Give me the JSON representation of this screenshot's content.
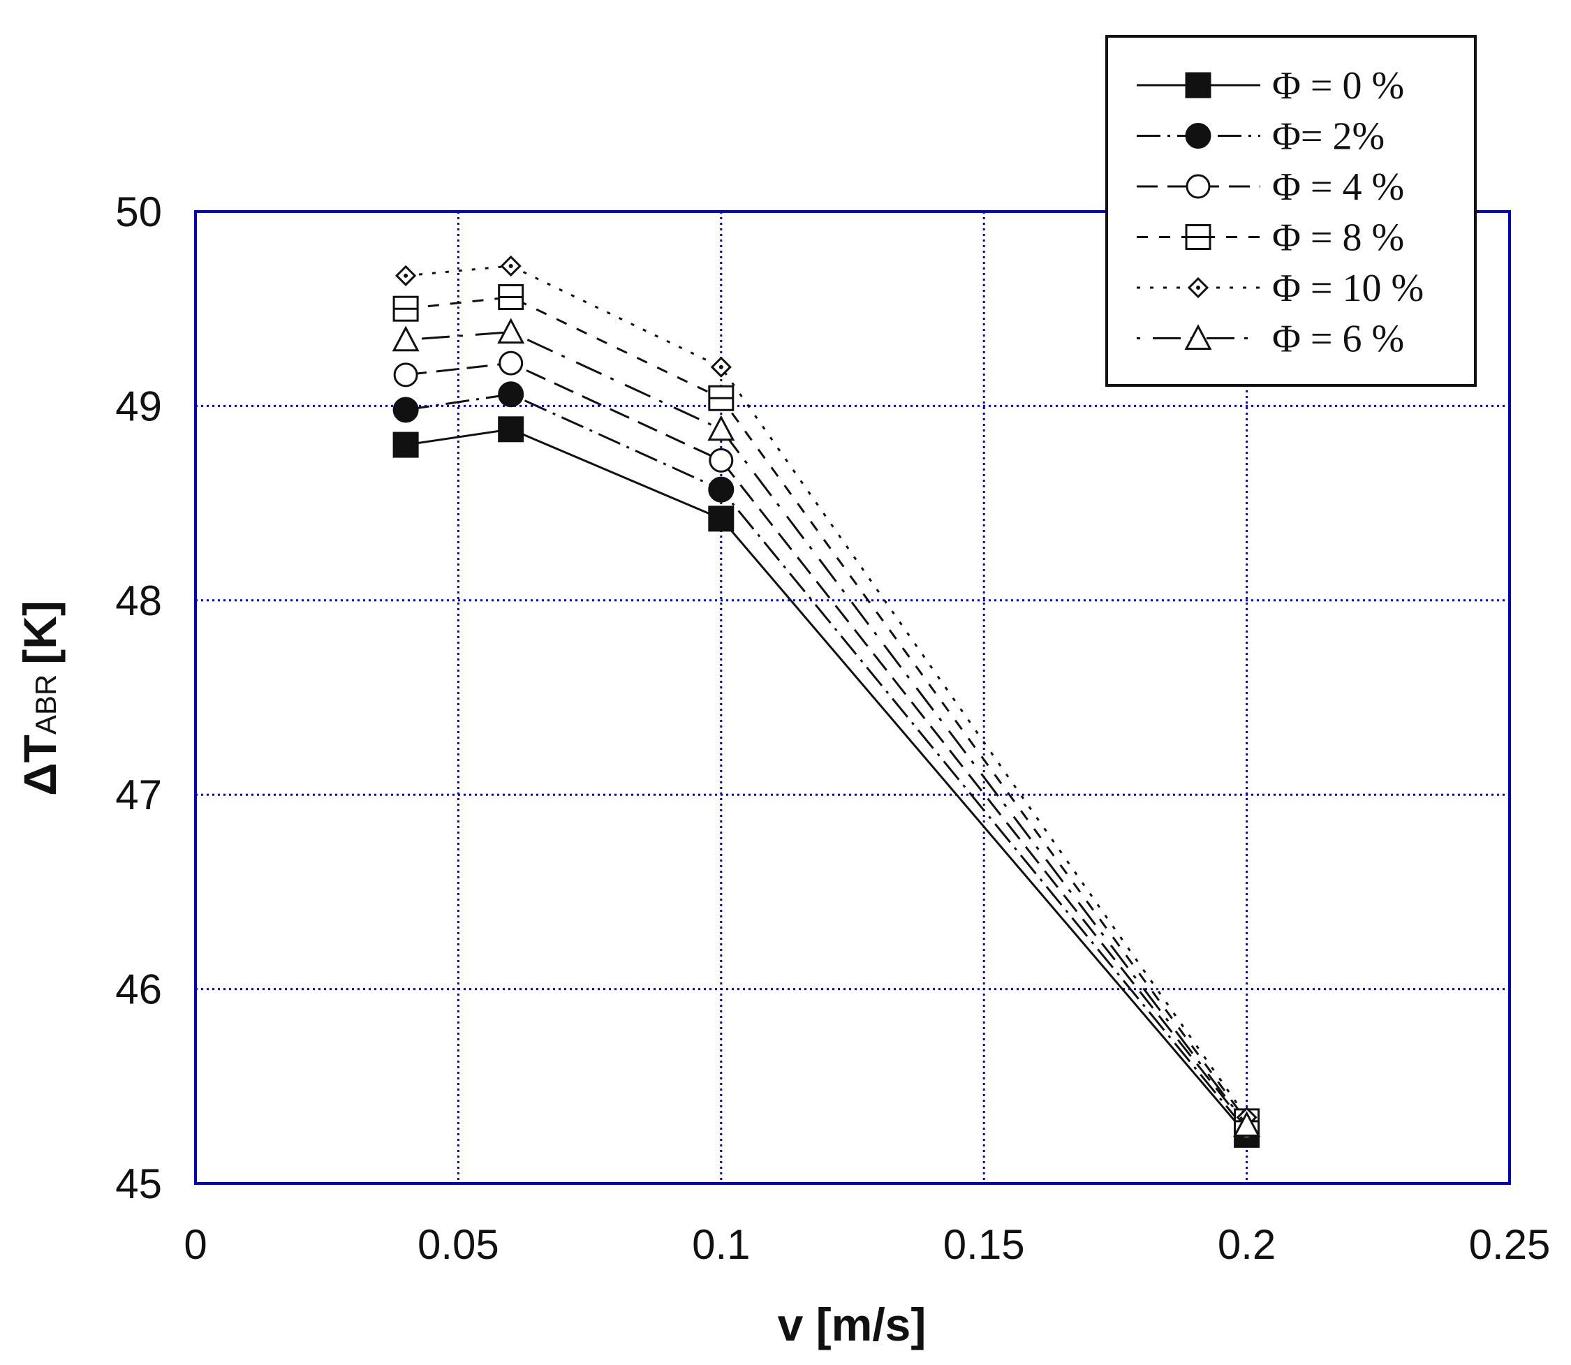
{
  "chart_data": {
    "type": "line",
    "xlabel": "v [m/s]",
    "ylabel": "ΔT",
    "ylabel_sub": "ABR",
    "ylabel_unit": "[K]",
    "xlim": [
      0,
      0.25
    ],
    "ylim": [
      45,
      50
    ],
    "x_ticks": [
      "0",
      "0.05",
      "0.1",
      "0.15",
      "0.2",
      "0.25"
    ],
    "y_ticks": [
      "45",
      "46",
      "47",
      "48",
      "49",
      "50"
    ],
    "x_tick_values": [
      0,
      0.05,
      0.1,
      0.15,
      0.2,
      0.25
    ],
    "y_tick_values": [
      45,
      46,
      47,
      48,
      49,
      50
    ],
    "grid": true,
    "frame_color": "#0000c8",
    "grid_color": "#0000c8",
    "legend_position": "top-right",
    "x": [
      0.04,
      0.06,
      0.1,
      0.2
    ],
    "series": [
      {
        "name": "Φ = 0 %",
        "values": [
          48.8,
          48.88,
          48.42,
          45.25
        ],
        "marker": "square-filled",
        "line": "solid"
      },
      {
        "name": "Φ= 2%",
        "values": [
          48.98,
          49.06,
          48.57,
          45.27
        ],
        "marker": "circle-filled",
        "line": "dash-dot"
      },
      {
        "name": "Φ = 4 %",
        "values": [
          49.16,
          49.22,
          48.72,
          45.29
        ],
        "marker": "circle-open",
        "line": "long-dash"
      },
      {
        "name": "Φ = 8 %",
        "values": [
          49.5,
          49.56,
          49.04,
          45.32
        ],
        "marker": "square-open",
        "line": "dashed"
      },
      {
        "name": "Φ = 10 %",
        "values": [
          49.67,
          49.72,
          49.2,
          45.34
        ],
        "marker": "diamond-open",
        "line": "dotted"
      },
      {
        "name": "Φ = 6 %",
        "values": [
          49.34,
          49.38,
          48.88,
          45.3
        ],
        "marker": "triangle-open",
        "line": "dot-long-dash"
      }
    ]
  }
}
